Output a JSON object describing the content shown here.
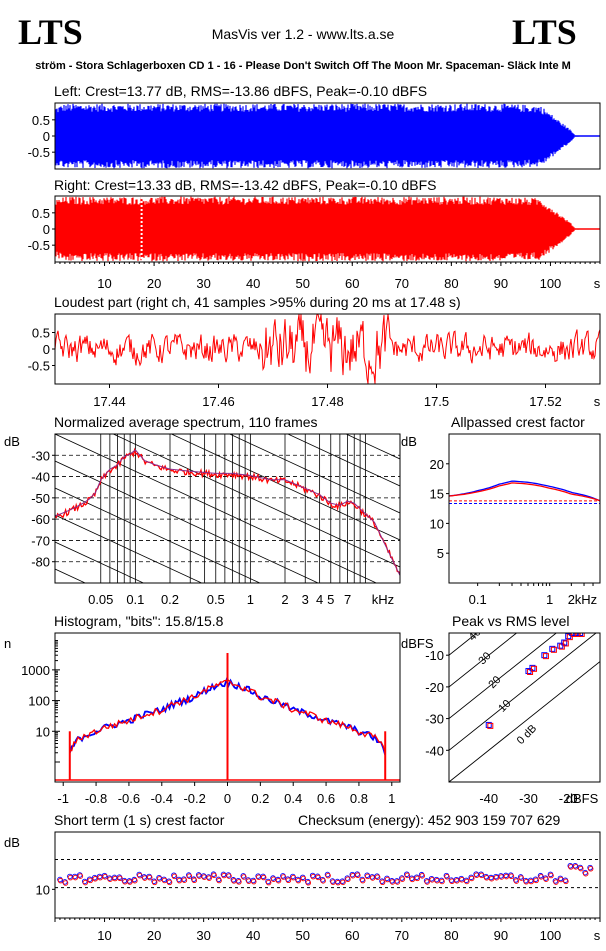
{
  "header": {
    "logo_left": "LTS",
    "logo_right": "LTS",
    "app": "MasVis ver 1.2 - www.lts.a.se",
    "track": "ström - Stora Schlagerboxen CD 1 - 16 - Please Don't Switch Off The Moon Mr. Spaceman- Släck Inte M"
  },
  "colors": {
    "left": "#0000ff",
    "right": "#ff0000",
    "grid": "#000000",
    "purple": "#8b2b8b"
  },
  "panels": {
    "left": {
      "title": "Left: Crest=13.77 dB, RMS=-13.86 dBFS, Peak=-0.10 dBFS"
    },
    "right": {
      "title": "Right: Crest=13.33 dB, RMS=-13.42 dBFS, Peak=-0.10 dBFS"
    },
    "loudest": {
      "title": "Loudest part (right ch, 41 samples >95% during 20 ms at 17.48 s)"
    },
    "spectrum": {
      "title": "Normalized average spectrum, 110 frames",
      "ylabel": "dB",
      "xunit": "kHz"
    },
    "allpass": {
      "title": "Allpassed crest factor",
      "ylabel": "dB",
      "xunit": "kHz"
    },
    "histogram": {
      "title": "Histogram, \"bits\": 15.8/15.8",
      "ylabel": "n"
    },
    "pvr": {
      "title": "Peak vs RMS level",
      "ylabel": "dBFS",
      "xunit": "dBFS"
    },
    "shortcrest": {
      "title": "Short term (1 s) crest factor",
      "checksum": "Checksum (energy):   452 903 159 707 629",
      "ylabel": "dB"
    }
  },
  "chart_data": [
    {
      "type": "area",
      "id": "left_waveform",
      "title": "Left: Crest=13.77 dB, RMS=-13.86 dBFS, Peak=-0.10 dBFS",
      "yticks": [
        "0.5",
        "0",
        "-0.5"
      ],
      "ylim": [
        -1,
        1
      ],
      "xlim": [
        0,
        110
      ],
      "envelope": {
        "x": [
          0,
          2,
          10,
          20,
          30,
          40,
          50,
          60,
          70,
          80,
          90,
          98,
          100,
          102,
          104,
          105,
          110
        ],
        "peak": [
          0.9,
          1.0,
          1.0,
          1.0,
          1.0,
          1.0,
          1.0,
          1.0,
          1.0,
          1.0,
          1.0,
          0.95,
          0.7,
          0.45,
          0.2,
          0.02,
          0.0
        ]
      }
    },
    {
      "type": "area",
      "id": "right_waveform",
      "title": "Right: Crest=13.33 dB, RMS=-13.42 dBFS, Peak=-0.10 dBFS",
      "yticks": [
        "0.5",
        "0",
        "-0.5"
      ],
      "ylim": [
        -1,
        1
      ],
      "xlim": [
        0,
        110
      ],
      "xticks": [
        "10",
        "20",
        "30",
        "40",
        "50",
        "60",
        "70",
        "80",
        "90",
        "100",
        "s"
      ],
      "marker_s": 17.48,
      "envelope": {
        "x": [
          0,
          2,
          10,
          20,
          30,
          40,
          50,
          60,
          70,
          80,
          90,
          98,
          100,
          102,
          104,
          105,
          110
        ],
        "peak": [
          0.9,
          1.0,
          1.0,
          1.0,
          1.0,
          1.0,
          1.0,
          1.0,
          1.0,
          1.0,
          1.0,
          0.95,
          0.7,
          0.45,
          0.2,
          0.02,
          0.0
        ]
      }
    },
    {
      "type": "line",
      "id": "loudest_part",
      "title": "Loudest part (right ch, 41 samples >95% during 20 ms at 17.48 s)",
      "xlim": [
        17.43,
        17.53
      ],
      "ylim": [
        -1,
        1
      ],
      "yticks": [
        "0.5",
        "0",
        "-0.5"
      ],
      "xticks": [
        "17.44",
        "17.46",
        "17.48",
        "17.5",
        "17.52",
        "s"
      ]
    },
    {
      "type": "line",
      "id": "avg_spectrum",
      "title": "Normalized average spectrum, 110 frames",
      "xscale": "log",
      "xlim": [
        0.02,
        20
      ],
      "ylim": [
        -90,
        -20
      ],
      "xticks": [
        "0.05",
        "0.1",
        "0.2",
        "0.5",
        "1",
        "2",
        "3",
        "4",
        "5",
        "7",
        "kHz"
      ],
      "yticks": [
        "-30",
        "-40",
        "-50",
        "-60",
        "-70",
        "-80"
      ],
      "series": [
        {
          "x": [
            0.02,
            0.025,
            0.03,
            0.035,
            0.04,
            0.045,
            0.05,
            0.06,
            0.07,
            0.08,
            0.09,
            0.1,
            0.12,
            0.15,
            0.2,
            0.3,
            0.5,
            0.7,
            1,
            1.5,
            2,
            3,
            4,
            5,
            6,
            7,
            8,
            10,
            12,
            15,
            20
          ],
          "y": [
            -59,
            -57,
            -55,
            -53,
            -51,
            -48,
            -42,
            -37,
            -35,
            -31,
            -30,
            -28,
            -33,
            -35,
            -37,
            -38,
            -39,
            -39,
            -40,
            -42,
            -42,
            -46,
            -49,
            -53,
            -54,
            -52,
            -53,
            -58,
            -62,
            -73,
            -87
          ]
        }
      ]
    },
    {
      "type": "line",
      "id": "allpassed_crest",
      "title": "Allpassed crest factor",
      "xscale": "log",
      "xlim": [
        0.04,
        5
      ],
      "ylim": [
        0,
        25
      ],
      "xticks": [
        "0.1",
        "1",
        "2",
        "kHz"
      ],
      "yticks": [
        "20",
        "15",
        "10",
        "5"
      ],
      "series": [
        {
          "name": "left",
          "x": [
            0.04,
            0.1,
            0.2,
            0.3,
            0.5,
            1,
            2,
            5
          ],
          "y": [
            14.6,
            15.5,
            16.6,
            17.1,
            16.9,
            16.2,
            15.2,
            13.8
          ]
        },
        {
          "name": "right",
          "x": [
            0.04,
            0.1,
            0.2,
            0.3,
            0.5,
            1,
            2,
            5
          ],
          "y": [
            14.6,
            15.3,
            16.3,
            16.8,
            16.6,
            15.9,
            14.9,
            13.8
          ]
        }
      ],
      "reference_lines": [
        13.77,
        13.33
      ]
    },
    {
      "type": "line",
      "id": "histogram",
      "title": "Histogram, \"bits\": 15.8/15.8",
      "yscale": "log",
      "xlim": [
        -1.05,
        1.05
      ],
      "xticks": [
        "-1",
        "-0.8",
        "-0.6",
        "-0.4",
        "-0.2",
        "0",
        "0.2",
        "0.4",
        "0.6",
        "0.8",
        "1"
      ],
      "yticks": [
        "1000",
        "100",
        "10"
      ],
      "x": [
        -0.96,
        -0.9,
        -0.8,
        -0.6,
        -0.4,
        -0.2,
        0,
        0.2,
        0.4,
        0.6,
        0.8,
        0.9,
        0.96
      ],
      "y": [
        2,
        6,
        10,
        22,
        50,
        130,
        400,
        130,
        50,
        22,
        10,
        6,
        2
      ]
    },
    {
      "type": "scatter",
      "id": "peak_vs_rms",
      "title": "Peak vs RMS level",
      "xlim": [
        -50,
        -12
      ],
      "ylim": [
        -50,
        -3
      ],
      "xticks": [
        "-40",
        "-30",
        "-20",
        "dBFS"
      ],
      "yticks": [
        "-10",
        "-20",
        "-30",
        "-40"
      ],
      "crest_lines": [
        "40",
        "30",
        "20",
        "10",
        "0 dB"
      ],
      "points": {
        "rms": [
          -40,
          -30,
          -29,
          -26,
          -24,
          -22,
          -21,
          -20,
          -19,
          -18,
          -17
        ],
        "peak": [
          -32,
          -15,
          -14,
          -10,
          -8,
          -7,
          -6,
          -4,
          -3,
          -3,
          -3
        ]
      }
    },
    {
      "type": "scatter",
      "id": "short_term_crest",
      "title": "Short term (1 s) crest factor",
      "xlim": [
        0,
        110
      ],
      "ylim": [
        5,
        20
      ],
      "xticks": [
        "10",
        "20",
        "30",
        "40",
        "50",
        "60",
        "70",
        "80",
        "90",
        "100",
        "s"
      ],
      "yticks": [
        "10"
      ],
      "dashed_lines": [
        10.3,
        15.2
      ]
    }
  ]
}
